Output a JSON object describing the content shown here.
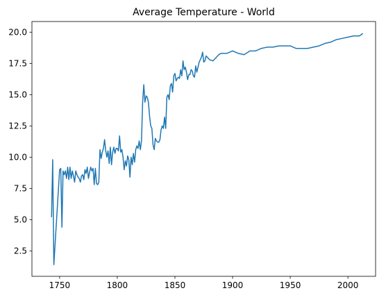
{
  "chart_data": {
    "type": "line",
    "title": "Average Temperature - World",
    "x": [
      1743,
      1744,
      1745,
      1750,
      1751,
      1752,
      1753,
      1754,
      1755,
      1756,
      1757,
      1758,
      1759,
      1760,
      1761,
      1762,
      1763,
      1764,
      1765,
      1766,
      1767,
      1768,
      1769,
      1770,
      1771,
      1772,
      1773,
      1774,
      1775,
      1776,
      1777,
      1778,
      1779,
      1780,
      1781,
      1782,
      1783,
      1784,
      1785,
      1786,
      1787,
      1788,
      1789,
      1790,
      1791,
      1792,
      1793,
      1794,
      1795,
      1796,
      1797,
      1798,
      1799,
      1800,
      1801,
      1802,
      1803,
      1804,
      1805,
      1806,
      1807,
      1808,
      1809,
      1810,
      1811,
      1812,
      1813,
      1814,
      1815,
      1816,
      1817,
      1818,
      1819,
      1820,
      1821,
      1822,
      1823,
      1824,
      1825,
      1826,
      1827,
      1828,
      1829,
      1830,
      1831,
      1832,
      1833,
      1834,
      1835,
      1836,
      1837,
      1838,
      1839,
      1840,
      1841,
      1842,
      1843,
      1844,
      1845,
      1846,
      1847,
      1848,
      1849,
      1850,
      1851,
      1852,
      1853,
      1854,
      1855,
      1856,
      1857,
      1858,
      1859,
      1860,
      1861,
      1862,
      1863,
      1864,
      1865,
      1866,
      1867,
      1868,
      1869,
      1870,
      1871,
      1872,
      1873,
      1874,
      1875,
      1876,
      1877,
      1878,
      1880,
      1883,
      1885,
      1888,
      1890,
      1895,
      1900,
      1905,
      1910,
      1915,
      1920,
      1925,
      1930,
      1935,
      1940,
      1945,
      1950,
      1955,
      1960,
      1965,
      1970,
      1975,
      1980,
      1985,
      1990,
      1995,
      2000,
      2005,
      2010,
      2013
    ],
    "series": [
      {
        "color": "#1f77b4",
        "values": [
          5.2,
          9.8,
          1.4,
          9.0,
          9.1,
          4.4,
          8.9,
          8.6,
          8.9,
          8.3,
          9.2,
          8.2,
          9.2,
          8.3,
          8.9,
          8.5,
          8.0,
          8.9,
          8.6,
          8.4,
          8.3,
          8.0,
          8.5,
          8.6,
          8.2,
          9.0,
          8.7,
          9.2,
          8.3,
          8.8,
          9.2,
          8.9,
          9.1,
          7.8,
          9.1,
          7.9,
          7.8,
          8.0,
          10.6,
          9.9,
          10.4,
          10.7,
          11.4,
          10.5,
          10.0,
          10.5,
          9.5,
          10.8,
          9.4,
          10.4,
          10.8,
          10.3,
          10.7,
          10.7,
          10.5,
          11.7,
          10.4,
          10.6,
          10.0,
          9.0,
          9.7,
          9.3,
          10.1,
          9.8,
          8.4,
          10.0,
          9.4,
          10.3,
          9.6,
          10.6,
          10.9,
          10.7,
          11.3,
          10.6,
          11.3,
          14.4,
          15.8,
          14.4,
          14.9,
          14.8,
          14.4,
          13.3,
          12.5,
          12.3,
          11.0,
          10.6,
          11.5,
          11.3,
          11.2,
          11.2,
          11.4,
          12.2,
          12.5,
          12.3,
          13.2,
          12.3,
          14.8,
          15.0,
          14.6,
          15.7,
          15.9,
          15.2,
          16.5,
          16.7,
          16.1,
          16.3,
          16.4,
          16.3,
          17.0,
          16.5,
          17.7,
          17.0,
          17.2,
          16.8,
          16.2,
          16.6,
          16.6,
          17.0,
          16.9,
          16.5,
          16.4,
          17.3,
          16.8,
          17.2,
          17.6,
          17.8,
          18.0,
          18.4,
          17.6,
          17.7,
          18.1,
          18.0,
          17.8,
          17.7,
          17.9,
          18.2,
          18.3,
          18.3,
          18.5,
          18.3,
          18.2,
          18.5,
          18.5,
          18.7,
          18.8,
          18.8,
          18.9,
          18.9,
          18.9,
          18.7,
          18.7,
          18.7,
          18.8,
          18.9,
          19.1,
          19.2,
          19.4,
          19.5,
          19.6,
          19.7,
          19.7,
          19.9
        ]
      }
    ],
    "xlim": [
      1726,
      2024
    ],
    "xticks": [
      1750,
      1800,
      1850,
      1900,
      1950,
      2000
    ],
    "ylim": [
      0.47,
      20.85
    ],
    "yticks": [
      2.5,
      {
        "value": 5,
        "label": "5.0"
      },
      {
        "value": 7.5,
        "label": "7.5"
      },
      {
        "value": 10,
        "label": "10.0"
      },
      12.5,
      {
        "value": 15,
        "label": "15.0"
      },
      17.5,
      {
        "value": 20,
        "label": "20.0"
      }
    ],
    "grid": false
  }
}
